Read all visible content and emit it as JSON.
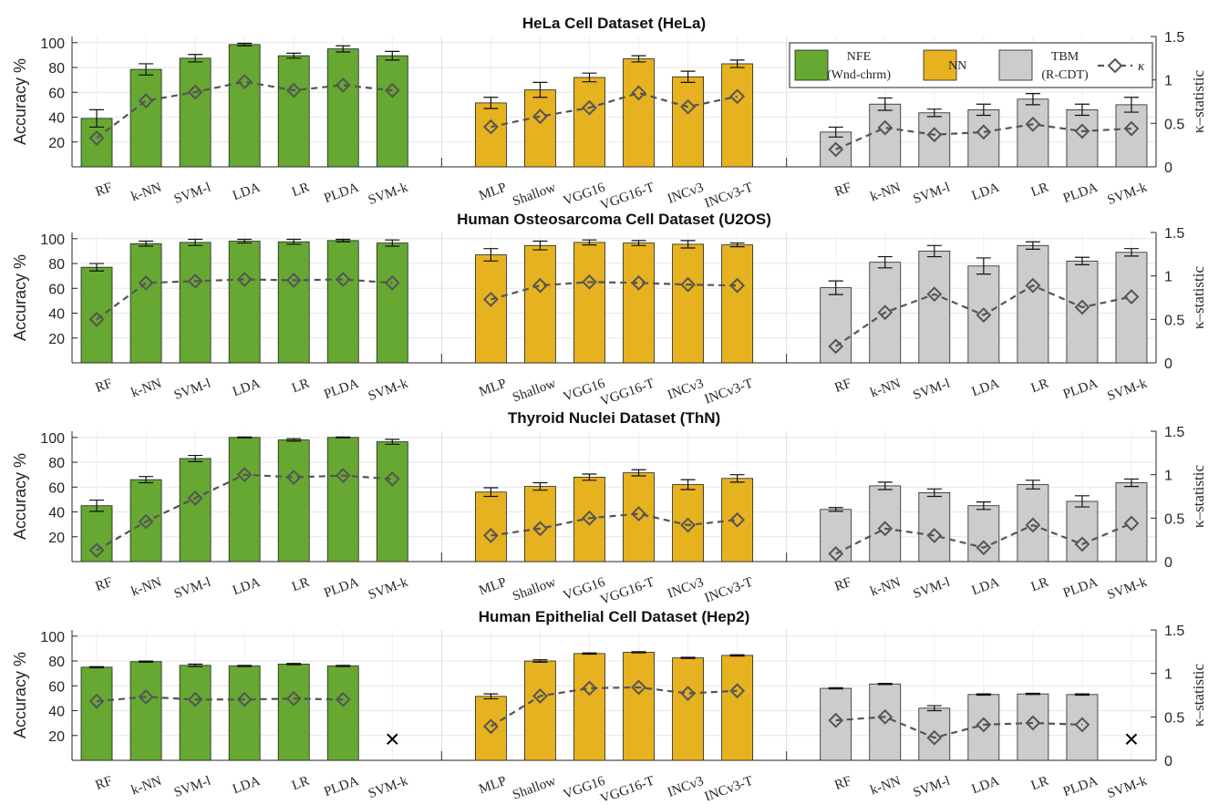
{
  "chart_data": {
    "type": "bar",
    "groups": [
      {
        "name": "NFE",
        "name2": "(Wnd-chrm)",
        "color": "#66a832",
        "categories": [
          "RF",
          "k-NN",
          "SVM-l",
          "LDA",
          "LR",
          "PLDA",
          "SVM-k"
        ]
      },
      {
        "name": "NN",
        "name2": "",
        "color": "#e6b21f",
        "categories": [
          "MLP",
          "Shallow",
          "VGG16",
          "VGG16-T",
          "INCv3",
          "INCv3-T"
        ]
      },
      {
        "name": "TBM",
        "name2": "(R-CDT)",
        "color": "#cccccc",
        "categories": [
          "RF",
          "k-NN",
          "SVM-l",
          "LDA",
          "LR",
          "PLDA",
          "SVM-k"
        ]
      }
    ],
    "kappa_label": "κ",
    "kappa_color": "#555555",
    "ylabel": "Accuracy %",
    "y2label": "κ–statistic",
    "ylim": [
      0,
      105
    ],
    "y2lim": [
      0,
      1.5
    ],
    "yticks": [
      "20",
      "40",
      "60",
      "80",
      "100"
    ],
    "y2ticks": [
      "0",
      "0.5",
      "1",
      "1.5"
    ],
    "missing_marker": "×",
    "panels": [
      {
        "title": "HeLa Cell Dataset (HeLa)",
        "acc": [
          [
            39,
            78.5,
            87.5,
            98.5,
            89.5,
            95,
            89.5
          ],
          [
            51.5,
            62,
            72,
            87,
            72.5,
            83
          ],
          [
            28,
            50.5,
            43.5,
            46,
            54.5,
            46,
            50
          ]
        ],
        "err": [
          [
            7,
            4.5,
            3,
            1,
            2,
            2.5,
            3.5
          ],
          [
            4.5,
            6,
            3.5,
            2.5,
            4.5,
            3
          ],
          [
            4,
            5,
            3,
            4.5,
            4.5,
            4.5,
            6
          ]
        ],
        "kappa": [
          [
            0.33,
            0.76,
            0.86,
            0.98,
            0.88,
            0.94,
            0.88
          ],
          [
            0.46,
            0.58,
            0.68,
            0.85,
            0.69,
            0.81
          ],
          [
            0.2,
            0.45,
            0.37,
            0.4,
            0.49,
            0.41,
            0.44
          ]
        ]
      },
      {
        "title": "Human Osteosarcoma Cell Dataset (U2OS)",
        "acc": [
          [
            77,
            96,
            97,
            98,
            97.5,
            98.5,
            96.5
          ],
          [
            87,
            94.5,
            97,
            96.5,
            95.5,
            95
          ],
          [
            60.5,
            81,
            90,
            78,
            94.5,
            82,
            89
          ]
        ],
        "err": [
          [
            3,
            2,
            2.5,
            1.5,
            2,
            1,
            2.5
          ],
          [
            5,
            3.5,
            2,
            2,
            3,
            1.5
          ],
          [
            5.5,
            4.5,
            4.5,
            6.5,
            3,
            3,
            3
          ]
        ],
        "kappa": [
          [
            0.5,
            0.92,
            0.94,
            0.96,
            0.95,
            0.96,
            0.92
          ],
          [
            0.73,
            0.89,
            0.93,
            0.92,
            0.9,
            0.89
          ],
          [
            0.19,
            0.58,
            0.79,
            0.55,
            0.89,
            0.64,
            0.76
          ]
        ]
      },
      {
        "title": "Thyroid Nuclei Dataset (ThN)",
        "acc": [
          [
            45,
            66,
            83,
            100,
            98,
            100,
            96.5
          ],
          [
            56,
            60.5,
            68,
            71.5,
            62,
            67
          ],
          [
            42,
            61,
            55.5,
            45,
            62,
            48.5,
            63.5
          ]
        ],
        "err": [
          [
            4.5,
            2.5,
            2.5,
            0.3,
            1,
            0.3,
            2
          ],
          [
            3.5,
            3,
            2.5,
            2.5,
            4,
            3
          ],
          [
            1.5,
            3,
            3,
            3,
            3.5,
            4.5,
            3
          ]
        ],
        "kappa": [
          [
            0.13,
            0.46,
            0.73,
            1.0,
            0.97,
            0.99,
            0.95
          ],
          [
            0.3,
            0.38,
            0.5,
            0.55,
            0.42,
            0.48
          ],
          [
            0.09,
            0.38,
            0.3,
            0.16,
            0.42,
            0.2,
            0.44
          ]
        ]
      },
      {
        "title": "Human Epithelial Cell Dataset (Hep2)",
        "acc": [
          [
            75,
            79.5,
            76.5,
            76,
            77.5,
            76,
            null
          ],
          [
            51.5,
            80,
            86,
            87,
            82.5,
            84.5
          ],
          [
            58,
            61.5,
            42,
            53,
            53.5,
            53,
            null
          ]
        ],
        "err": [
          [
            0.5,
            0.5,
            1,
            0.5,
            0.5,
            0.5,
            0
          ],
          [
            2,
            1,
            0.5,
            0.5,
            0.5,
            0.5
          ],
          [
            0.5,
            0.5,
            2,
            0.5,
            0.5,
            0.5,
            0
          ]
        ],
        "kappa": [
          [
            0.68,
            0.73,
            0.7,
            0.7,
            0.71,
            0.7,
            null
          ],
          [
            0.39,
            0.74,
            0.83,
            0.84,
            0.77,
            0.8
          ],
          [
            0.46,
            0.5,
            0.26,
            0.41,
            0.43,
            0.41,
            null
          ]
        ]
      }
    ]
  }
}
